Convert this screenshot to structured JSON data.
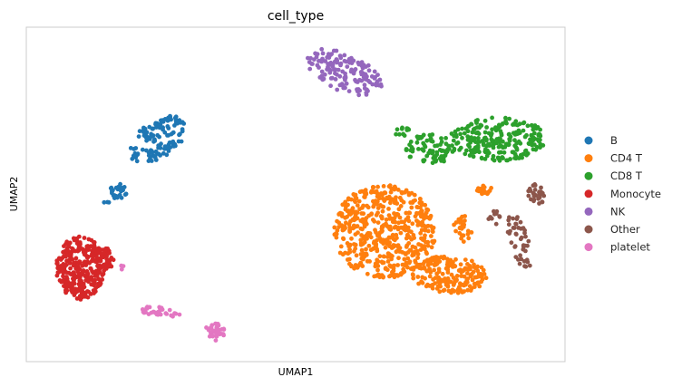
{
  "chart_data": {
    "type": "scatter",
    "title": "cell_type",
    "xlabel": "UMAP1",
    "ylabel": "UMAP2",
    "xlim": [
      0,
      100
    ],
    "ylim": [
      0,
      100
    ],
    "grid": false,
    "legend_position": "right",
    "series": [
      {
        "name": "B",
        "color": "#1f77b4",
        "clusters": [
          {
            "cx": 24.5,
            "cy": 66.5,
            "rx": 4.2,
            "ry": 8.0,
            "rot": -30,
            "n": 130
          },
          {
            "cx": 17.2,
            "cy": 51.0,
            "rx": 1.8,
            "ry": 2.4,
            "rot": 0,
            "n": 25
          },
          {
            "cx": 15.0,
            "cy": 47.6,
            "rx": 0.6,
            "ry": 0.5,
            "rot": 0,
            "n": 3
          }
        ]
      },
      {
        "name": "CD4 T",
        "color": "#ff7f0e",
        "clusters": [
          {
            "cx": 66.5,
            "cy": 39.0,
            "rx": 9.5,
            "ry": 14.0,
            "rot": 0,
            "n": 520
          },
          {
            "cx": 78.5,
            "cy": 26.0,
            "rx": 7.0,
            "ry": 5.5,
            "rot": -10,
            "n": 200
          },
          {
            "cx": 81.0,
            "cy": 40.0,
            "rx": 1.8,
            "ry": 4.2,
            "rot": 0,
            "n": 25
          },
          {
            "cx": 85.0,
            "cy": 51.5,
            "rx": 1.5,
            "ry": 1.5,
            "rot": 0,
            "n": 18
          }
        ]
      },
      {
        "name": "CD8 T",
        "color": "#2ca02c",
        "clusters": [
          {
            "cx": 87.5,
            "cy": 66.5,
            "rx": 9.0,
            "ry": 6.5,
            "rot": 0,
            "n": 230
          },
          {
            "cx": 75.0,
            "cy": 63.5,
            "rx": 4.5,
            "ry": 4.5,
            "rot": 0,
            "n": 80
          },
          {
            "cx": 70.0,
            "cy": 68.5,
            "rx": 1.5,
            "ry": 1.5,
            "rot": 0,
            "n": 12
          }
        ]
      },
      {
        "name": "Monocyte",
        "color": "#d62728",
        "clusters": [
          {
            "cx": 10.0,
            "cy": 28.0,
            "rx": 4.5,
            "ry": 9.5,
            "rot": 0,
            "n": 290
          },
          {
            "cx": 14.5,
            "cy": 30.5,
            "rx": 1.8,
            "ry": 3.5,
            "rot": 0,
            "n": 40
          }
        ]
      },
      {
        "name": "NK",
        "color": "#9467bd",
        "clusters": [
          {
            "cx": 59.0,
            "cy": 86.5,
            "rx": 5.0,
            "ry": 8.5,
            "rot": 45,
            "n": 150
          }
        ]
      },
      {
        "name": "Other",
        "color": "#8c564b",
        "clusters": [
          {
            "cx": 94.5,
            "cy": 50.5,
            "rx": 1.5,
            "ry": 3.5,
            "rot": 15,
            "n": 28
          },
          {
            "cx": 91.5,
            "cy": 36.0,
            "rx": 1.8,
            "ry": 8.5,
            "rot": 10,
            "n": 45
          },
          {
            "cx": 87.0,
            "cy": 43.0,
            "rx": 1.2,
            "ry": 2.0,
            "rot": 0,
            "n": 10
          }
        ]
      },
      {
        "name": "platelet",
        "color": "#e377c2",
        "clusters": [
          {
            "cx": 25.0,
            "cy": 15.0,
            "rx": 4.0,
            "ry": 1.5,
            "rot": -10,
            "n": 30
          },
          {
            "cx": 35.0,
            "cy": 9.0,
            "rx": 1.8,
            "ry": 2.8,
            "rot": 0,
            "n": 40
          },
          {
            "cx": 18.0,
            "cy": 28.0,
            "rx": 0.6,
            "ry": 1.0,
            "rot": 0,
            "n": 3
          }
        ]
      }
    ]
  }
}
